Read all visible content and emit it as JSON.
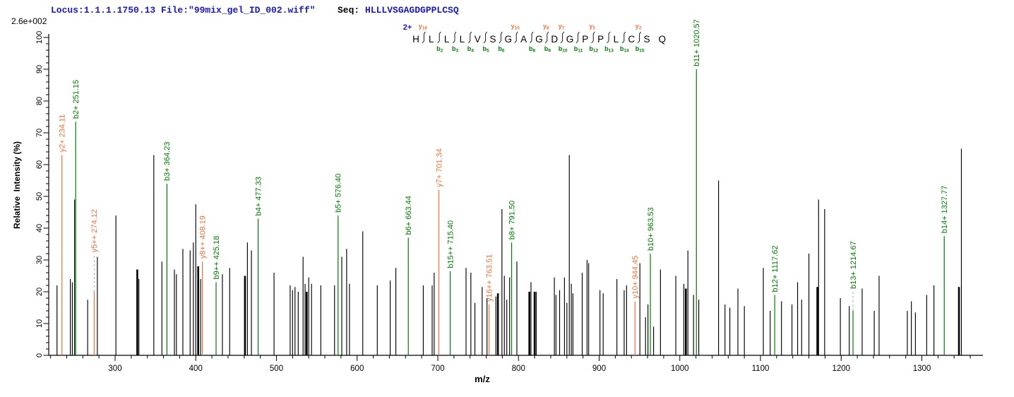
{
  "header": {
    "locus_file": "Locus:1.1.1.1750.13 File:\"99mix_gel_ID_002.wiff\"",
    "seq_label": "Seq: ",
    "sequence": "HLLLVSGAGDGPPLCSQ",
    "max_intensity": "2.6e+002"
  },
  "axes": {
    "y_label": "Relative  Intensity (%)",
    "x_label": "m/z",
    "y_ticks": [
      0,
      10,
      20,
      30,
      40,
      50,
      60,
      70,
      80,
      90,
      100
    ],
    "x_ticks": [
      300,
      400,
      500,
      600,
      700,
      800,
      900,
      1000,
      1100,
      1200,
      1300
    ]
  },
  "colors": {
    "b_ion": "#007D00",
    "y_ion": "#F0713A",
    "header_blue": "#1818C0",
    "peak_black": "#000000",
    "dash_gray": "#AAAAAA"
  },
  "sequence_panel": {
    "charge": "2+",
    "residues": "HLLLVSGAGDGPPLCSQ",
    "cleavages": [
      {
        "gap": 1,
        "y": "y16"
      },
      {
        "gap": 2,
        "b": "b2"
      },
      {
        "gap": 3,
        "b": "b3"
      },
      {
        "gap": 4,
        "b": "b4"
      },
      {
        "gap": 5,
        "b": "b5"
      },
      {
        "gap": 6,
        "b": "b6"
      },
      {
        "gap": 7,
        "y": "y10"
      },
      {
        "gap": 8,
        "b": "b8"
      },
      {
        "gap": 9,
        "b": "b9",
        "y": "y8"
      },
      {
        "gap": 10,
        "b": "b10",
        "y": "y7"
      },
      {
        "gap": 11,
        "b": "b11"
      },
      {
        "gap": 12,
        "b": "b12",
        "y": "y5"
      },
      {
        "gap": 13,
        "b": "b13"
      },
      {
        "gap": 14,
        "b": "b14"
      },
      {
        "gap": 15,
        "b": "b15",
        "y": "y2"
      }
    ]
  },
  "chart_data": {
    "type": "bar",
    "subtype": "mass-spectrum-stick-plot",
    "xlabel": "m/z",
    "ylabel": "Relative  Intensity (%)",
    "xlim": [
      218,
      1373
    ],
    "ylim": [
      0,
      100
    ],
    "grid": false,
    "annotated_peaks": [
      {
        "label": "y2+ 234.11",
        "type": "y",
        "mz": 234.11,
        "pct": 63
      },
      {
        "label": "b2+ 251.15",
        "type": "b",
        "mz": 251.15,
        "pct": 73.5
      },
      {
        "label": "y5++ 274.12",
        "type": "y",
        "mz": 274.12,
        "pct": 20,
        "label_offset_pct": 31.5
      },
      {
        "label": "b3+ 364.23",
        "type": "b",
        "mz": 364.23,
        "pct": 54
      },
      {
        "label": "y8++ 408.19",
        "type": "y",
        "mz": 408.19,
        "pct": 29.5
      },
      {
        "label": "b9++ 425.18",
        "type": "b",
        "mz": 425.18,
        "pct": 23
      },
      {
        "label": "b4+ 477.33",
        "type": "b",
        "mz": 477.33,
        "pct": 43
      },
      {
        "label": "b5+ 576.40",
        "type": "b",
        "mz": 576.4,
        "pct": 44
      },
      {
        "label": "b6+ 663.44",
        "type": "b",
        "mz": 663.44,
        "pct": 37
      },
      {
        "label": "y7+ 701.34",
        "type": "y",
        "mz": 701.34,
        "pct": 52
      },
      {
        "label": "b15++ 715.40",
        "type": "b",
        "mz": 715.4,
        "pct": 26.5
      },
      {
        "label": "y16++ 763.51",
        "type": "y",
        "mz": 763.51,
        "pct": 16
      },
      {
        "label": "b8+ 791.50",
        "type": "b",
        "mz": 791.5,
        "pct": 35.5
      },
      {
        "label": "y10+ 944.45",
        "type": "y",
        "mz": 944.45,
        "pct": 17
      },
      {
        "label": "b10+ 963.53",
        "type": "b",
        "mz": 963.53,
        "pct": 32
      },
      {
        "label": "b11+ 1020.57",
        "type": "b",
        "mz": 1020.57,
        "pct": 90
      },
      {
        "label": "b12+ 1117.62",
        "type": "b",
        "mz": 1117.62,
        "pct": 19
      },
      {
        "label": "b13+ 1214.67",
        "type": "b",
        "mz": 1214.67,
        "pct": 14,
        "label_offset_pct": 20
      },
      {
        "label": "b14+ 1327.77",
        "type": "b",
        "mz": 1327.77,
        "pct": 37.5
      }
    ],
    "unannotated_peaks": [
      [
        228,
        22
      ],
      [
        244.5,
        24
      ],
      [
        247,
        23
      ],
      [
        249.8,
        49
      ],
      [
        266,
        17.5
      ],
      [
        278,
        31
      ],
      [
        301,
        44
      ],
      [
        327.5,
        27,
        1
      ],
      [
        329.5,
        24
      ],
      [
        348,
        63
      ],
      [
        358,
        29.5
      ],
      [
        373.5,
        27
      ],
      [
        376,
        25.5
      ],
      [
        384,
        33.5
      ],
      [
        393,
        33
      ],
      [
        397,
        35.5
      ],
      [
        400,
        47.5
      ],
      [
        403,
        28,
        1
      ],
      [
        406,
        24
      ],
      [
        433,
        25.5
      ],
      [
        442,
        27.5
      ],
      [
        461,
        25,
        1
      ],
      [
        464,
        35.5
      ],
      [
        469,
        33
      ],
      [
        497,
        26
      ],
      [
        517,
        22
      ],
      [
        520,
        20.5
      ],
      [
        523,
        21.5
      ],
      [
        527,
        20
      ],
      [
        533,
        31
      ],
      [
        535.5,
        22.5
      ],
      [
        537.5,
        20,
        1
      ],
      [
        540,
        24.5
      ],
      [
        543.5,
        22.5
      ],
      [
        555,
        22
      ],
      [
        572,
        22
      ],
      [
        581,
        31
      ],
      [
        587,
        33.5
      ],
      [
        590.5,
        22.5
      ],
      [
        607,
        39
      ],
      [
        625,
        22
      ],
      [
        641,
        23.5
      ],
      [
        648,
        27.5
      ],
      [
        682,
        22
      ],
      [
        693,
        22
      ],
      [
        695.5,
        26
      ],
      [
        735,
        27.5
      ],
      [
        741,
        26
      ],
      [
        746,
        16.5
      ],
      [
        755,
        21.5
      ],
      [
        761,
        18
      ],
      [
        772,
        18.5
      ],
      [
        774.5,
        19.5,
        1
      ],
      [
        779.5,
        46
      ],
      [
        782.5,
        25
      ],
      [
        785.5,
        17.5
      ],
      [
        789,
        24.5
      ],
      [
        798,
        29.5
      ],
      [
        813.5,
        20,
        1
      ],
      [
        815.5,
        23
      ],
      [
        820,
        20,
        1
      ],
      [
        822,
        20
      ],
      [
        844.5,
        24.5
      ],
      [
        846.5,
        19
      ],
      [
        851,
        20.5
      ],
      [
        857,
        24.5
      ],
      [
        860,
        16.5
      ],
      [
        863,
        63
      ],
      [
        865.5,
        22.5
      ],
      [
        867.5,
        19.5
      ],
      [
        879,
        26
      ],
      [
        885,
        30
      ],
      [
        887,
        29
      ],
      [
        901,
        20.5
      ],
      [
        905,
        19.5
      ],
      [
        922,
        24
      ],
      [
        931,
        20.5
      ],
      [
        934,
        22
      ],
      [
        950.5,
        29
      ],
      [
        957.5,
        12
      ],
      [
        960.5,
        16
      ],
      [
        967.5,
        9
      ],
      [
        976,
        27
      ],
      [
        995,
        25
      ],
      [
        1005,
        22.5
      ],
      [
        1007.5,
        21,
        1
      ],
      [
        1010,
        33
      ],
      [
        1017,
        19
      ],
      [
        1023.5,
        17.5
      ],
      [
        1048,
        55
      ],
      [
        1056,
        16
      ],
      [
        1062,
        15
      ],
      [
        1072,
        21
      ],
      [
        1080,
        15.5
      ],
      [
        1103.5,
        27.5
      ],
      [
        1112,
        14
      ],
      [
        1126,
        17
      ],
      [
        1139,
        16
      ],
      [
        1146,
        23
      ],
      [
        1151,
        17.5
      ],
      [
        1160,
        32
      ],
      [
        1170.5,
        21.5,
        1
      ],
      [
        1172,
        49
      ],
      [
        1179.5,
        46
      ],
      [
        1199,
        18
      ],
      [
        1210,
        15.5
      ],
      [
        1226,
        21
      ],
      [
        1241,
        14
      ],
      [
        1247,
        25
      ],
      [
        1282,
        14
      ],
      [
        1287,
        17
      ],
      [
        1292,
        13.5
      ],
      [
        1306,
        19
      ],
      [
        1315,
        22
      ],
      [
        1346,
        21.5,
        1
      ],
      [
        1349,
        65
      ]
    ]
  }
}
